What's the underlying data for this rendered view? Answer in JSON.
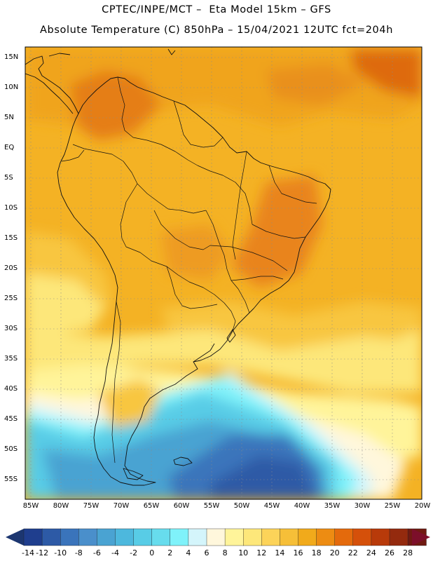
{
  "header": {
    "line1": "CPTEC/INPE/MCT –  Eta Model 15km – GFS",
    "line2": "Absolute Temperature (C) 850hPa – 15/04/2021 12UTC fct=204h"
  },
  "map": {
    "lat_labels": [
      "15N",
      "10N",
      "5N",
      "EQ",
      "5S",
      "10S",
      "15S",
      "20S",
      "25S",
      "30S",
      "35S",
      "40S",
      "45S",
      "50S",
      "55S"
    ],
    "lon_labels": [
      "85W",
      "80W",
      "75W",
      "70W",
      "65W",
      "60W",
      "55W",
      "50W",
      "45W",
      "40W",
      "35W",
      "30W",
      "25W",
      "20W"
    ]
  },
  "colorbar": {
    "labels": [
      "-14",
      "-12",
      "-10",
      "-8",
      "-6",
      "-4",
      "-2",
      "0",
      "2",
      "4",
      "6",
      "8",
      "10",
      "12",
      "14",
      "16",
      "18",
      "20",
      "22",
      "24",
      "26",
      "28"
    ],
    "colors": [
      "#1f3e8e",
      "#2d5aa6",
      "#3a74bb",
      "#4a8fcb",
      "#4aa3d2",
      "#4db8dd",
      "#58cce6",
      "#67dced",
      "#7ff2fa",
      "#d4f5fb",
      "#fff7dc",
      "#fff49a",
      "#fde77a",
      "#fcd359",
      "#f6bf38",
      "#f1aa1b",
      "#ed8c12",
      "#e46a0c",
      "#d5500a",
      "#b83a0a",
      "#942a0e",
      "#701a12"
    ],
    "low_arrow_color": "#1c3670",
    "high_arrow_color": "#7c0f2a"
  }
}
